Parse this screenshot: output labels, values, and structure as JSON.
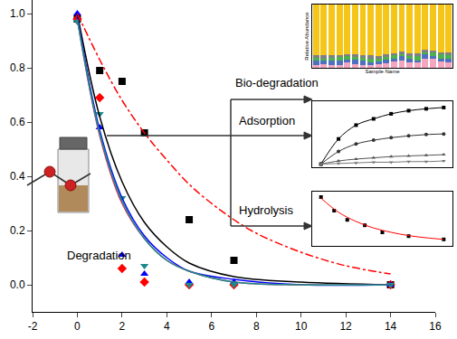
{
  "chart_data": [
    {
      "type": "scatter",
      "annotations": [
        "Bio-degradation",
        "Adsorption",
        "Hydrolysis",
        "Degradation"
      ],
      "xlim": [
        -2,
        16
      ],
      "xticks": [
        -2,
        0,
        2,
        4,
        6,
        8,
        10,
        12,
        14,
        16
      ],
      "ylim": [
        -0.1,
        1.05
      ],
      "yticks": [
        {
          "value": 0,
          "label": "0.0"
        },
        {
          "value": 0.2,
          "label": "0.2"
        },
        {
          "value": 0.4,
          "label": "0.4"
        },
        {
          "value": 0.6,
          "label": "0.6"
        },
        {
          "value": 0.8,
          "label": "0.8"
        },
        {
          "value": 1.0,
          "label": "1.0"
        }
      ],
      "grid": false,
      "series": [
        {
          "type": "scatter",
          "color": "#000000",
          "marker": "square",
          "x": [
            0,
            1,
            2,
            3,
            5,
            7,
            14
          ],
          "values": [
            0.98,
            0.79,
            0.75,
            0.56,
            0.24,
            0.09,
            0.0
          ]
        },
        {
          "type": "scatter",
          "color": "#ff0000",
          "marker": "diamond",
          "x": [
            0,
            1,
            2,
            3,
            5,
            7,
            14
          ],
          "values": [
            0.98,
            0.69,
            0.06,
            0.01,
            0.0,
            0.0,
            0.0
          ]
        },
        {
          "type": "scatter",
          "color": "#0000ff",
          "marker": "triangle-up",
          "x": [
            0,
            1,
            2,
            3,
            5,
            7,
            14
          ],
          "values": [
            1.0,
            0.58,
            0.11,
            0.04,
            0.01,
            0.01,
            0.0
          ]
        },
        {
          "type": "scatter",
          "color": "#1a8a8a",
          "marker": "triangle-down",
          "x": [
            0,
            1,
            2,
            3,
            5,
            7,
            14
          ],
          "values": [
            0.97,
            0.63,
            0.32,
            0.07,
            0.0,
            0.0,
            0.0
          ]
        },
        {
          "type": "line",
          "color": "#000000",
          "line_style": "solid",
          "x": [
            0,
            1,
            2,
            3,
            4,
            5,
            7,
            10,
            14
          ],
          "values": [
            1.0,
            0.62,
            0.38,
            0.23,
            0.14,
            0.08,
            0.03,
            0.01,
            0.0
          ]
        },
        {
          "type": "line",
          "color": "#0000ff",
          "line_style": "solid",
          "x": [
            0,
            1,
            2,
            3,
            4,
            5,
            7,
            10,
            14
          ],
          "values": [
            0.99,
            0.57,
            0.32,
            0.18,
            0.1,
            0.05,
            0.02,
            0.0,
            0.0
          ]
        },
        {
          "type": "line",
          "color": "#cc3366",
          "line_style": "solid",
          "x": [
            0,
            1,
            2,
            3,
            4,
            5,
            7,
            10,
            14
          ],
          "values": [
            0.98,
            0.55,
            0.3,
            0.17,
            0.09,
            0.05,
            0.01,
            0.0,
            0.0
          ]
        },
        {
          "type": "line",
          "color": "#1a8a8a",
          "line_style": "solid",
          "x": [
            0,
            1,
            2,
            3,
            4,
            5,
            7,
            10,
            14
          ],
          "values": [
            0.98,
            0.56,
            0.31,
            0.17,
            0.09,
            0.05,
            0.01,
            0.0,
            0.0
          ]
        },
        {
          "type": "line",
          "color": "#ff0000",
          "line_style": "dashdot",
          "x": [
            0,
            1,
            2,
            3,
            4,
            5,
            6,
            7,
            8,
            10,
            12,
            14
          ],
          "values": [
            1.0,
            0.83,
            0.68,
            0.56,
            0.46,
            0.37,
            0.3,
            0.24,
            0.19,
            0.12,
            0.07,
            0.04
          ]
        }
      ]
    },
    {
      "type": "bar",
      "stacked": true,
      "tick_labels": false,
      "x_label": "Sample Name",
      "y_label": "Relative Abundance",
      "ylim": [
        0,
        1
      ],
      "categories": [
        null,
        null,
        null,
        null,
        null,
        null,
        null,
        null,
        null,
        null,
        null,
        null,
        null,
        null,
        null,
        null,
        null,
        null
      ],
      "series": [
        {
          "color": "#f4a6c0",
          "values": [
            0.05,
            0.06,
            0.04,
            0.05,
            0.08,
            0.06,
            0.05,
            0.04,
            0.06,
            0.07,
            0.1,
            0.12,
            0.09,
            0.08,
            0.15,
            0.14,
            0.1,
            0.09
          ]
        },
        {
          "color": "#4f6fc0",
          "values": [
            0.06,
            0.05,
            0.07,
            0.06,
            0.05,
            0.07,
            0.06,
            0.05,
            0.04,
            0.06,
            0.05,
            0.06,
            0.05,
            0.04,
            0.06,
            0.05,
            0.05,
            0.06
          ]
        },
        {
          "color": "#4caf50",
          "values": [
            0.05,
            0.04,
            0.05,
            0.06,
            0.05,
            0.04,
            0.05,
            0.06,
            0.05,
            0.04,
            0.05,
            0.04,
            0.05,
            0.06,
            0.04,
            0.05,
            0.06,
            0.05
          ]
        },
        {
          "color": "#808080",
          "values": [
            0.04,
            0.05,
            0.04,
            0.03,
            0.04,
            0.05,
            0.04,
            0.05,
            0.04,
            0.05,
            0.03,
            0.04,
            0.04,
            0.05,
            0.04,
            0.03,
            0.04,
            0.05
          ]
        },
        {
          "color": "#f5c518",
          "values": [
            0.8,
            0.8,
            0.8,
            0.8,
            0.78,
            0.78,
            0.8,
            0.8,
            0.81,
            0.78,
            0.77,
            0.74,
            0.77,
            0.77,
            0.71,
            0.73,
            0.75,
            0.75
          ]
        }
      ]
    },
    {
      "type": "line",
      "tick_labels": false,
      "xlim": [
        -1,
        15
      ],
      "ylim": [
        -5,
        100
      ],
      "series": [
        {
          "color": "#000000",
          "marker": "square",
          "x": [
            0,
            2,
            4,
            6,
            8,
            10,
            12,
            14
          ],
          "values": [
            0,
            40,
            62,
            72,
            80,
            85,
            88,
            90
          ]
        },
        {
          "color": "#333333",
          "marker": "circle",
          "x": [
            0,
            2,
            4,
            6,
            8,
            10,
            12,
            14
          ],
          "values": [
            0,
            20,
            32,
            38,
            42,
            45,
            47,
            48
          ]
        },
        {
          "color": "#555555",
          "marker": "triangle-up",
          "x": [
            0,
            2,
            4,
            6,
            8,
            10,
            12,
            14
          ],
          "values": [
            0,
            5,
            8,
            10,
            12,
            13,
            14,
            15
          ]
        },
        {
          "color": "#777777",
          "marker": "triangle-down",
          "x": [
            0,
            2,
            4,
            6,
            8,
            10,
            12,
            14
          ],
          "values": [
            0,
            1,
            2,
            3,
            3,
            4,
            4,
            5
          ]
        }
      ]
    },
    {
      "type": "scatter",
      "tick_labels": false,
      "xlim": [
        -2,
        30
      ],
      "ylim": [
        0,
        100
      ],
      "series": [
        {
          "type": "scatter",
          "color": "#000000",
          "marker": "square",
          "x": [
            0,
            3,
            6,
            10,
            14,
            20,
            28
          ],
          "values": [
            90,
            65,
            48,
            38,
            25,
            18,
            12
          ]
        },
        {
          "type": "line",
          "color": "#ff0000",
          "line_style": "solid",
          "x": [
            0,
            4,
            8,
            12,
            16,
            20,
            24,
            28
          ],
          "values": [
            88,
            62,
            45,
            33,
            25,
            19,
            15,
            12
          ]
        }
      ]
    }
  ]
}
